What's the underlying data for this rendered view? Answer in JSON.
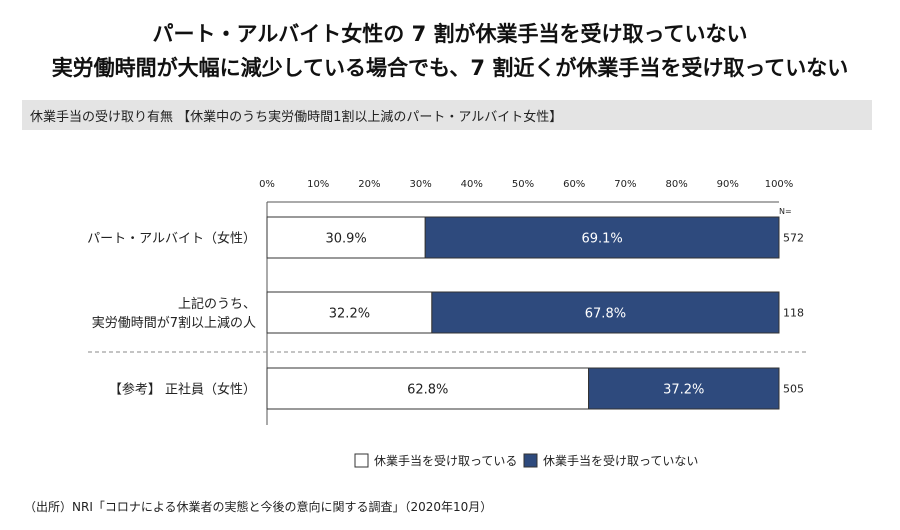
{
  "header": {
    "title_line1": "パート・アルバイト女性の 7 割が休業手当を受け取っていない",
    "title_line2": "実労働時間が大幅に減少している場合でも、7 割近くが休業手当を受け取っていない",
    "subtitle": "休業手当の受け取り有無 【休業中のうち実労働時間1割以上減のパート・アルバイト女性】"
  },
  "colors": {
    "received": "#ffffff",
    "not_received": "#2e4a7d",
    "border": "#333333"
  },
  "chart_data": {
    "type": "bar",
    "orientation": "horizontal",
    "stacked": true,
    "x_ticks": [
      "0%",
      "10%",
      "20%",
      "30%",
      "40%",
      "50%",
      "60%",
      "70%",
      "80%",
      "90%",
      "100%"
    ],
    "xlim": [
      0,
      100
    ],
    "n_header": "N=",
    "categories": [
      [
        "パート・アルバイト（女性）"
      ],
      [
        "上記のうち、",
        "実労働時間が7割以上減の人"
      ],
      [
        "【参考】 正社員（女性）"
      ]
    ],
    "series": [
      {
        "name": "休業手当を受け取っている",
        "values": [
          30.9,
          32.2,
          62.8
        ],
        "labels": [
          "30.9%",
          "32.2%",
          "62.8%"
        ]
      },
      {
        "name": "休業手当を受け取っていない",
        "values": [
          69.1,
          67.8,
          37.2
        ],
        "labels": [
          "69.1%",
          "67.8%",
          "37.2%"
        ]
      }
    ],
    "n_values": [
      "572",
      "118",
      "505"
    ]
  },
  "source": "（出所）NRI「コロナによる休業者の実態と今後の意向に関する調査」（2020年10月）"
}
